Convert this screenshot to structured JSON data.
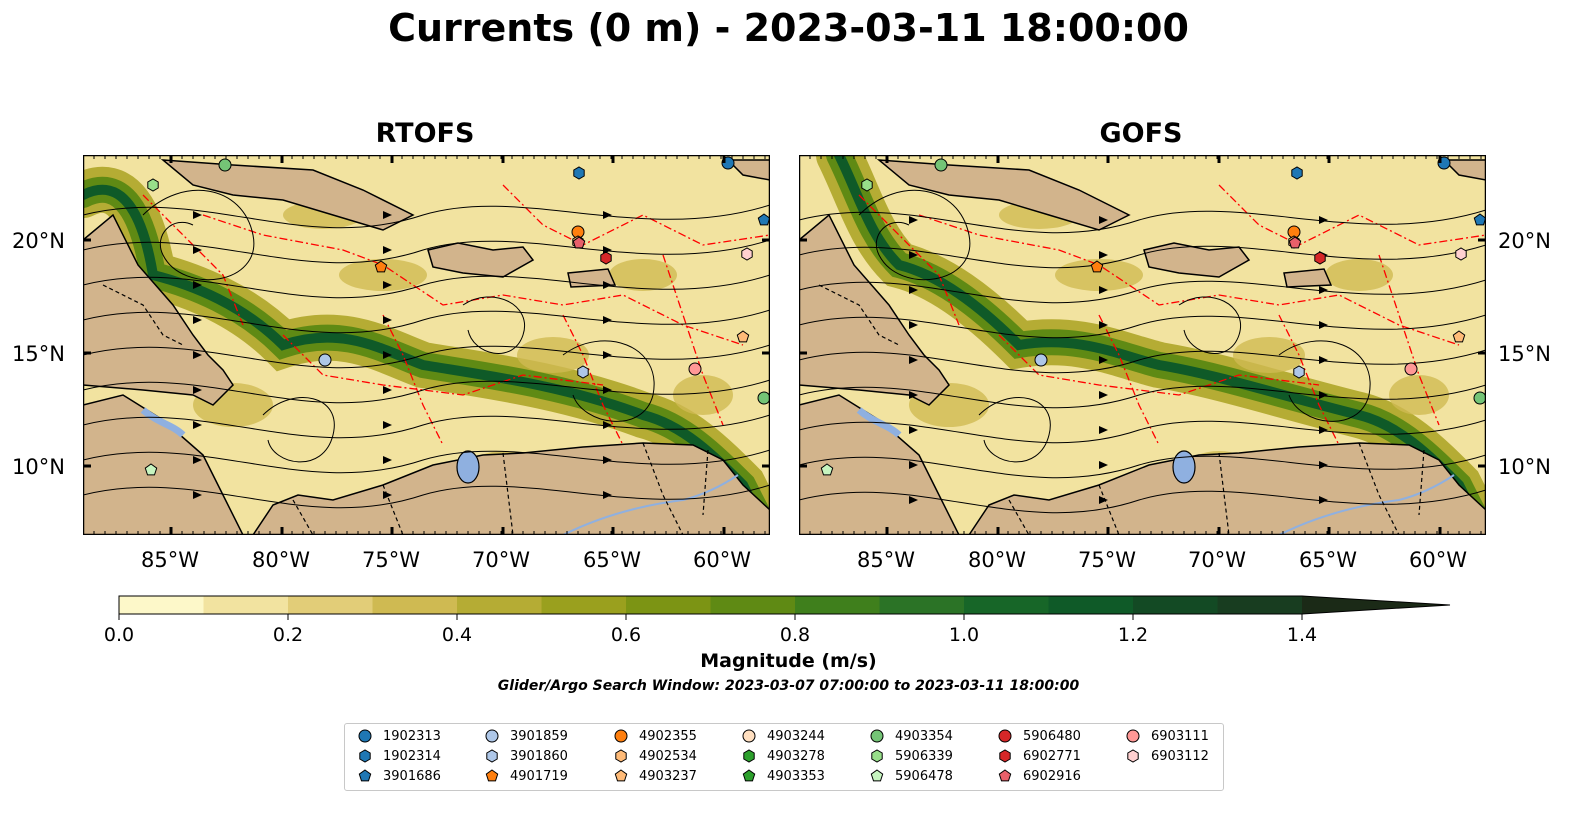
{
  "title": "Currents (0 m) - 2023-03-11 18:00:00",
  "panels": [
    {
      "title": "RTOFS"
    },
    {
      "title": "GOFS"
    }
  ],
  "lon_labels": [
    "85°W",
    "80°W",
    "75°W",
    "70°W",
    "65°W",
    "60°W"
  ],
  "lat_labels": [
    "20°N",
    "15°N",
    "10°N"
  ],
  "colorbar": {
    "label": "Magnitude (m/s)",
    "tick_labels": [
      "0.0",
      "0.2",
      "0.4",
      "0.6",
      "0.8",
      "1.0",
      "1.2",
      "1.4"
    ],
    "range": [
      0,
      1.6
    ],
    "colors": [
      "#fdf8c9",
      "#f2e3a0",
      "#e2cd78",
      "#cfba52",
      "#b5ac34",
      "#9aa01e",
      "#7c9414",
      "#5f8a14",
      "#3f7f1c",
      "#2b7326",
      "#176628",
      "#0f5a28",
      "#134a24",
      "#183d20",
      "#1a311b",
      "#1b2a17"
    ]
  },
  "search_window": "Glider/Argo Search Window: 2023-03-07 07:00:00 to 2023-03-11 18:00:00",
  "colors": {
    "land": "#d2b48c",
    "eez_line": "#ff0000",
    "lake": "#8fb0e0"
  },
  "legend": [
    {
      "id": "1902313",
      "marker": "circle",
      "color": "#1f77b4"
    },
    {
      "id": "1902314",
      "marker": "hexagon",
      "color": "#1f77b4"
    },
    {
      "id": "3901686",
      "marker": "pentagon",
      "color": "#1f77b4"
    },
    {
      "id": "3901859",
      "marker": "circle",
      "color": "#aec7e8"
    },
    {
      "id": "3901860",
      "marker": "hexagon",
      "color": "#aec7e8"
    },
    {
      "id": "4901719",
      "marker": "pentagon",
      "color": "#ff7f0e"
    },
    {
      "id": "4902355",
      "marker": "circle",
      "color": "#ff7f0e"
    },
    {
      "id": "4902534",
      "marker": "hexagon",
      "color": "#ffbb78"
    },
    {
      "id": "4903237",
      "marker": "pentagon",
      "color": "#ffbb78"
    },
    {
      "id": "4903244",
      "marker": "circle",
      "color": "#ffdfc0"
    },
    {
      "id": "4903278",
      "marker": "hexagon",
      "color": "#2ca02c"
    },
    {
      "id": "4903353",
      "marker": "pentagon",
      "color": "#2ca02c"
    },
    {
      "id": "4903354",
      "marker": "circle",
      "color": "#74c476"
    },
    {
      "id": "5906339",
      "marker": "hexagon",
      "color": "#98df8a"
    },
    {
      "id": "5906478",
      "marker": "pentagon",
      "color": "#c7f5c0"
    },
    {
      "id": "5906480",
      "marker": "circle",
      "color": "#d62728"
    },
    {
      "id": "6902771",
      "marker": "hexagon",
      "color": "#d62728"
    },
    {
      "id": "6902916",
      "marker": "pentagon",
      "color": "#e8606a"
    },
    {
      "id": "6903111",
      "marker": "circle",
      "color": "#ff9896"
    },
    {
      "id": "6903112",
      "marker": "hexagon",
      "color": "#ffd0d0"
    }
  ]
}
